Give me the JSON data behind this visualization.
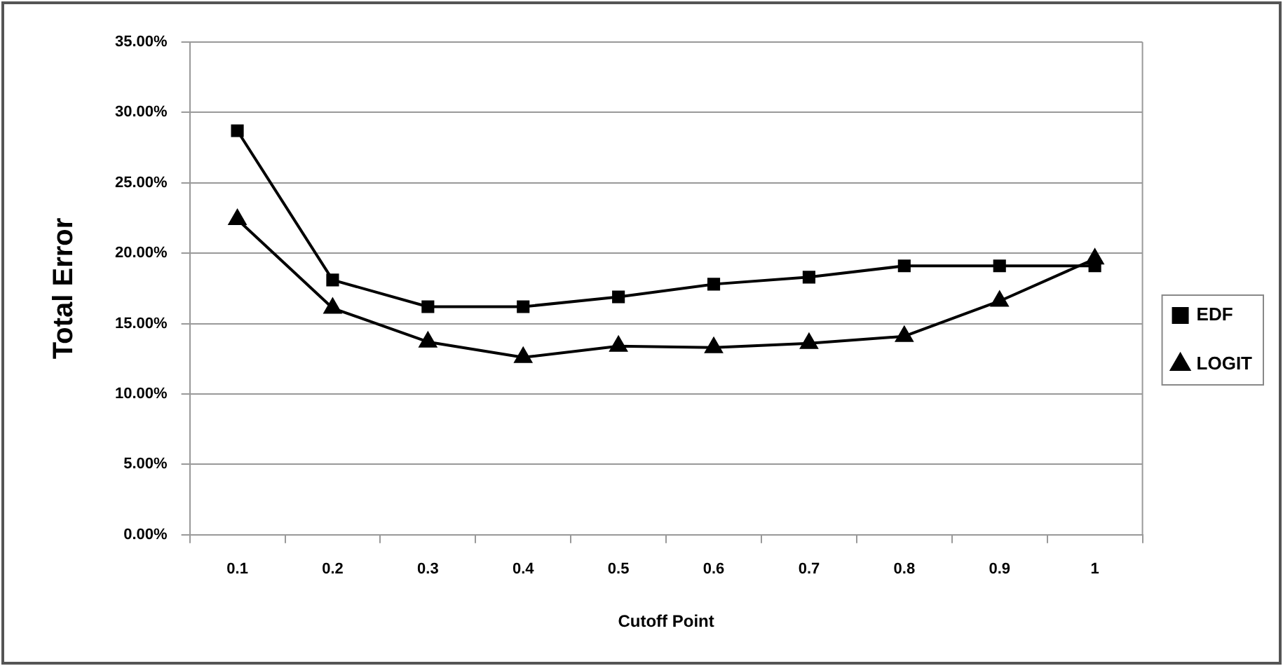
{
  "chart_data": {
    "type": "line",
    "xlabel": "Cutoff Point",
    "ylabel": "Total Error",
    "categories": [
      "0.1",
      "0.2",
      "0.3",
      "0.4",
      "0.5",
      "0.6",
      "0.7",
      "0.8",
      "0.9",
      "1"
    ],
    "series": [
      {
        "name": "EDF",
        "color": "#000000",
        "marker": "square",
        "values": [
          28.7,
          18.1,
          16.2,
          16.2,
          16.9,
          17.8,
          18.3,
          19.1,
          19.1,
          19.1
        ]
      },
      {
        "name": "LOGIT",
        "color": "#000000",
        "marker": "triangle",
        "values": [
          22.4,
          16.1,
          13.7,
          12.6,
          13.4,
          13.3,
          13.6,
          14.1,
          16.6,
          19.6
        ]
      }
    ],
    "ylim": [
      0,
      35
    ],
    "yticks": [
      {
        "value": 0,
        "label": "0.00%"
      },
      {
        "value": 5,
        "label": "5.00%"
      },
      {
        "value": 10,
        "label": "10.00%"
      },
      {
        "value": 15,
        "label": "15.00%"
      },
      {
        "value": 20,
        "label": "20.00%"
      },
      {
        "value": 25,
        "label": "25.00%"
      },
      {
        "value": 30,
        "label": "30.00%"
      },
      {
        "value": 35,
        "label": "35.00%"
      }
    ],
    "grid": "y",
    "legend": "right",
    "line_style": "solid"
  }
}
